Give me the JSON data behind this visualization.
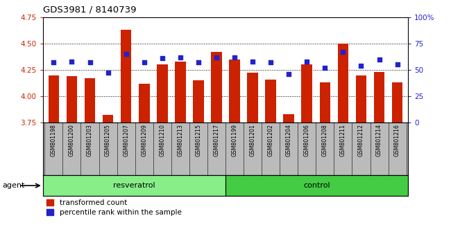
{
  "title": "GDS3981 / 8140739",
  "samples": [
    "GSM801198",
    "GSM801200",
    "GSM801203",
    "GSM801205",
    "GSM801207",
    "GSM801209",
    "GSM801210",
    "GSM801213",
    "GSM801215",
    "GSM801217",
    "GSM801199",
    "GSM801201",
    "GSM801202",
    "GSM801204",
    "GSM801206",
    "GSM801208",
    "GSM801211",
    "GSM801212",
    "GSM801214",
    "GSM801216"
  ],
  "transformed_count": [
    4.2,
    4.19,
    4.17,
    3.82,
    4.63,
    4.12,
    4.3,
    4.33,
    4.15,
    4.42,
    4.35,
    4.22,
    4.16,
    3.83,
    4.3,
    4.13,
    4.5,
    4.2,
    4.23,
    4.13
  ],
  "percentile_rank": [
    57,
    58,
    57,
    47,
    65,
    57,
    61,
    62,
    57,
    62,
    62,
    58,
    57,
    46,
    58,
    52,
    67,
    54,
    60,
    55
  ],
  "n_resveratrol": 10,
  "n_control": 10,
  "ylim_left": [
    3.75,
    4.75
  ],
  "ylim_right": [
    0,
    100
  ],
  "yticks_left": [
    3.75,
    4.0,
    4.25,
    4.5,
    4.75
  ],
  "yticks_right": [
    0,
    25,
    50,
    75,
    100
  ],
  "ytick_labels_right": [
    "0",
    "25",
    "50",
    "75",
    "100%"
  ],
  "bar_color": "#cc2200",
  "dot_color": "#2222cc",
  "resv_color": "#88ee88",
  "ctrl_color": "#44cc44",
  "bg_color": "#bbbbbb",
  "plot_bg": "#ffffff",
  "left_tick_color": "#cc2200",
  "right_tick_color": "#2222cc",
  "gridline_yticks": [
    4.0,
    4.25,
    4.5
  ]
}
